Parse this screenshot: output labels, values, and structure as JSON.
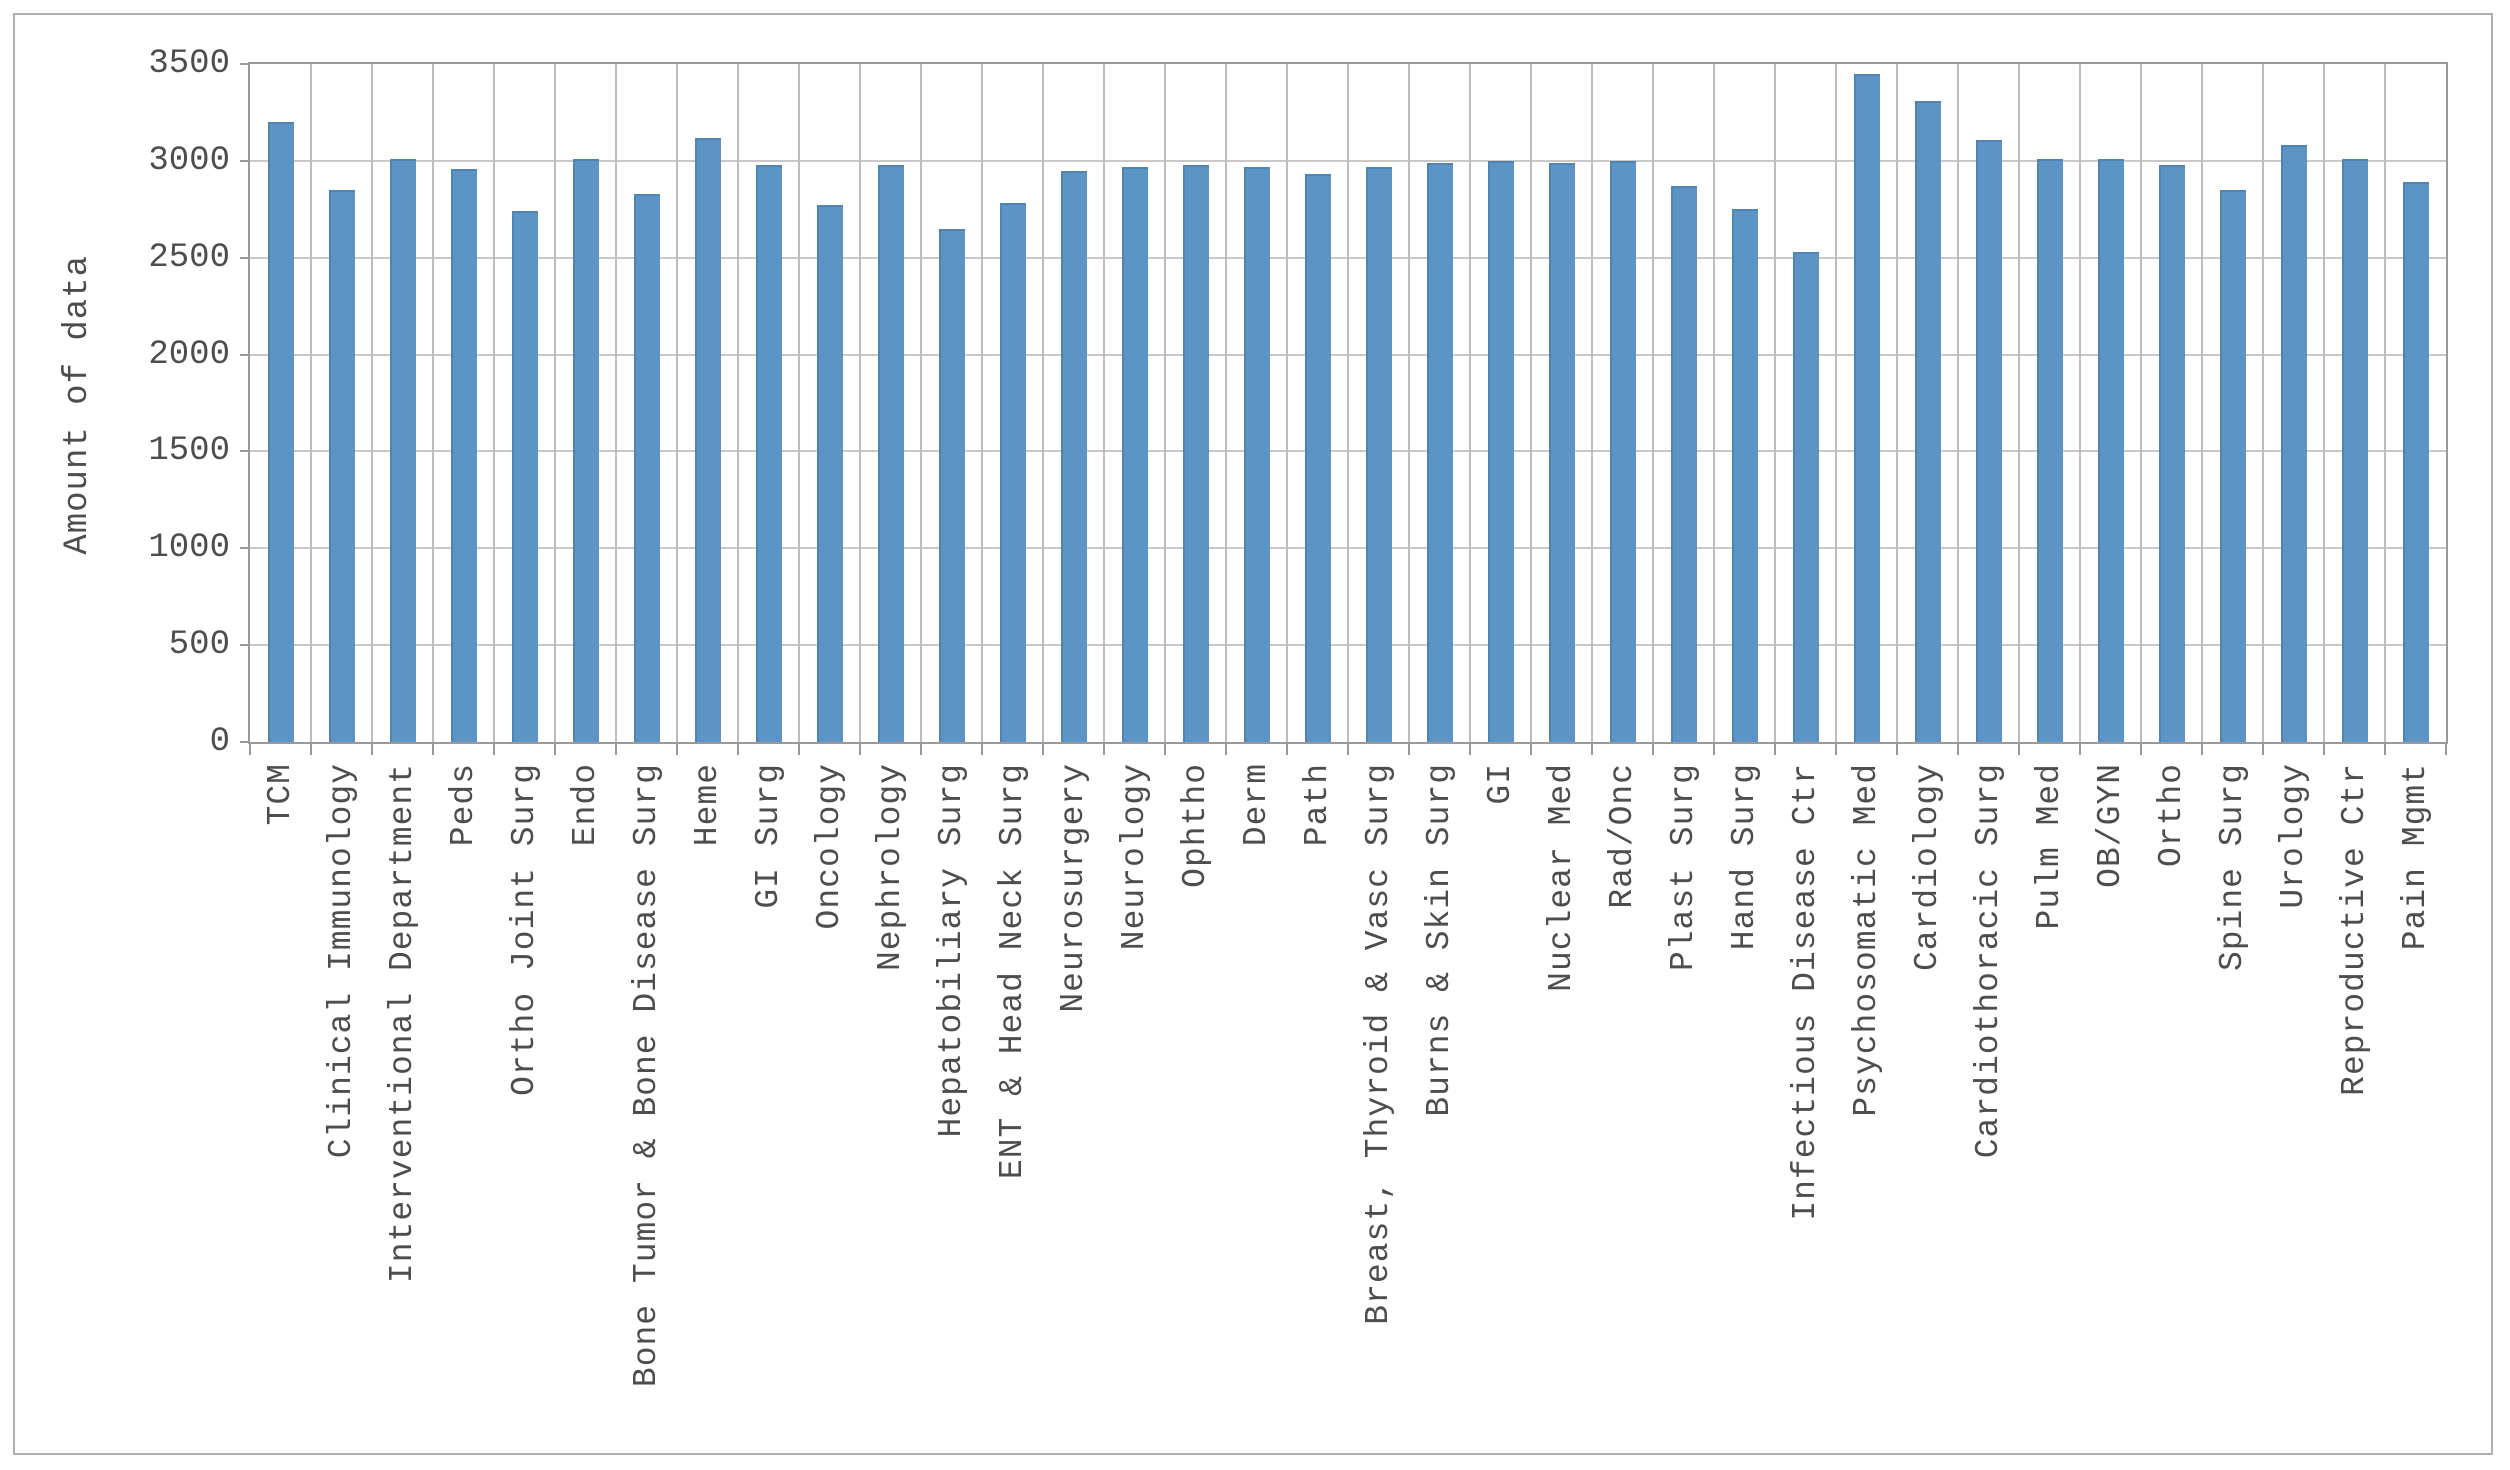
{
  "frame": {
    "border_color": "#b0b0b0",
    "background": "#ffffff"
  },
  "colors": {
    "bar_fill": "#5b94c5",
    "bar_edge": "#4d86b7",
    "grid_horizontal": "#c9c9c9",
    "grid_vertical": "#bdbdbd",
    "axis_spine": "#9a9a9a",
    "tick_text": "#4d4d4d"
  },
  "chart_data": {
    "type": "bar",
    "title": "",
    "xlabel": "",
    "ylabel": "Amount of data",
    "ylim": [
      0,
      3500
    ],
    "yticks": [
      0,
      500,
      1000,
      1500,
      2000,
      2500,
      3000,
      3500
    ],
    "grid": "both",
    "legend_position": "none",
    "categories": [
      "TCM",
      "Clinical Immunology",
      "Interventional Department",
      "Peds",
      "Ortho Joint Surg",
      "Endo",
      "Bone Tumor & Bone Disease Surg",
      "Heme",
      "GI Surg",
      "Oncology",
      "Nephrology",
      "Hepatobiliary Surg",
      "ENT & Head Neck Surg",
      "Neurosurgery",
      "Neurology",
      "Ophtho",
      "Derm",
      "Path",
      "Breast, Thyroid & Vasc Surg",
      "Burns & Skin Surg",
      "GI",
      "Nuclear Med",
      "Rad/Onc",
      "Plast Surg",
      "Hand Surg",
      "Infectious Disease Ctr",
      "Psychosomatic Med",
      "Cardiology",
      "Cardiothoracic Surg",
      "Pulm Med",
      "OB/GYN",
      "Ortho",
      "Spine Surg",
      "Urology",
      "Reproductive Ctr",
      "Pain Mgmt"
    ],
    "values": [
      3200,
      2850,
      3010,
      2960,
      2740,
      3010,
      2830,
      3120,
      2980,
      2770,
      2980,
      2650,
      2780,
      2950,
      2970,
      2980,
      2970,
      2930,
      2970,
      2990,
      3000,
      2990,
      3000,
      2870,
      2750,
      2530,
      3450,
      3310,
      3110,
      3010,
      3010,
      2980,
      2850,
      3080,
      3010,
      2890
    ]
  }
}
